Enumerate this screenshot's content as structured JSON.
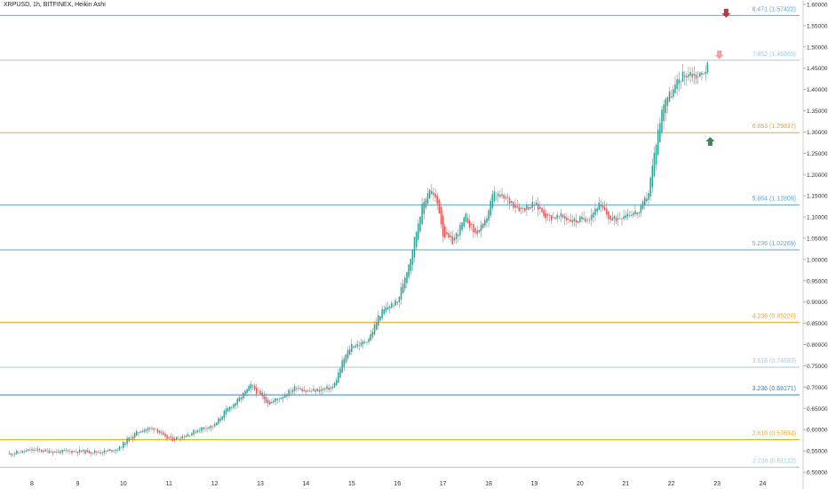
{
  "chart_data": {
    "type": "candlestick",
    "title": "XRPUSD, 1h, BITFINEX, Heikin Ashi",
    "xlabel": "",
    "ylabel": "",
    "ylim": [
      0.5,
      1.6
    ],
    "x_ticks": [
      "8",
      "9",
      "10",
      "11",
      "12",
      "13",
      "14",
      "15",
      "16",
      "17",
      "18",
      "19",
      "20",
      "21",
      "22",
      "23",
      "24"
    ],
    "y_ticks": [
      "0.50000",
      "0.55000",
      "0.60000",
      "0.65000",
      "0.70000",
      "0.75000",
      "0.80000",
      "0.85000",
      "0.90000",
      "0.95000",
      "1.00000",
      "1.05000",
      "1.10000",
      "1.15000",
      "1.20000",
      "1.25000",
      "1.30000",
      "1.35000",
      "1.40000",
      "1.45000",
      "1.50000",
      "1.55000",
      "1.60000"
    ],
    "fib_levels": [
      {
        "label": "8.471 (1.57422)",
        "value": 1.57422,
        "color": "#5aa9dd"
      },
      {
        "label": "7.852 (1.46869)",
        "value": 1.46869,
        "color": "#9fcbe8"
      },
      {
        "label": "6.853 (1.29837)",
        "value": 1.29837,
        "color": "#f5a623"
      },
      {
        "label": "5.854 (1.12805)",
        "value": 1.12805,
        "color": "#5aa9dd"
      },
      {
        "label": "5.236 (1.02269)",
        "value": 1.02269,
        "color": "#5aa9dd"
      },
      {
        "label": "4.236 (0.85220)",
        "value": 0.8522,
        "color": "#f5a623"
      },
      {
        "label": "3.618 (0.74683)",
        "value": 0.74683,
        "color": "#9fcbe8"
      },
      {
        "label": "3.236 (0.68171)",
        "value": 0.68171,
        "color": "#3f7fd1"
      },
      {
        "label": "2.618 (0.57634)",
        "value": 0.57634,
        "color": "#f5a623"
      },
      {
        "label": "2.236 (0.51122)",
        "value": 0.51122,
        "color": "#9fcbe8"
      }
    ],
    "price_path": [
      [
        7.5,
        0.543
      ],
      [
        8.0,
        0.552
      ],
      [
        8.5,
        0.548
      ],
      [
        9.0,
        0.549
      ],
      [
        9.5,
        0.547
      ],
      [
        9.9,
        0.555
      ],
      [
        10.1,
        0.578
      ],
      [
        10.4,
        0.6
      ],
      [
        10.7,
        0.604
      ],
      [
        10.9,
        0.58
      ],
      [
        11.1,
        0.578
      ],
      [
        11.4,
        0.588
      ],
      [
        11.7,
        0.603
      ],
      [
        12.0,
        0.61
      ],
      [
        12.2,
        0.64
      ],
      [
        12.5,
        0.668
      ],
      [
        12.8,
        0.704
      ],
      [
        13.0,
        0.68
      ],
      [
        13.2,
        0.662
      ],
      [
        13.5,
        0.68
      ],
      [
        13.8,
        0.702
      ],
      [
        14.0,
        0.69
      ],
      [
        14.3,
        0.693
      ],
      [
        14.6,
        0.7
      ],
      [
        14.8,
        0.76
      ],
      [
        15.0,
        0.8
      ],
      [
        15.2,
        0.8
      ],
      [
        15.4,
        0.818
      ],
      [
        15.6,
        0.87
      ],
      [
        15.8,
        0.89
      ],
      [
        16.0,
        0.9
      ],
      [
        16.3,
        1.01
      ],
      [
        16.5,
        1.11
      ],
      [
        16.7,
        1.17
      ],
      [
        16.9,
        1.125
      ],
      [
        17.0,
        1.06
      ],
      [
        17.2,
        1.04
      ],
      [
        17.5,
        1.1
      ],
      [
        17.7,
        1.06
      ],
      [
        17.9,
        1.08
      ],
      [
        18.1,
        1.155
      ],
      [
        18.4,
        1.14
      ],
      [
        18.7,
        1.12
      ],
      [
        19.0,
        1.13
      ],
      [
        19.3,
        1.1
      ],
      [
        19.6,
        1.1
      ],
      [
        19.9,
        1.09
      ],
      [
        20.2,
        1.1
      ],
      [
        20.4,
        1.13
      ],
      [
        20.7,
        1.09
      ],
      [
        21.0,
        1.11
      ],
      [
        21.3,
        1.11
      ],
      [
        21.5,
        1.16
      ],
      [
        21.7,
        1.3
      ],
      [
        21.85,
        1.38
      ],
      [
        22.0,
        1.39
      ],
      [
        22.2,
        1.43
      ],
      [
        22.4,
        1.44
      ],
      [
        22.6,
        1.43
      ],
      [
        22.8,
        1.455
      ]
    ],
    "markers": [
      {
        "type": "arrow-down",
        "x": 23.2,
        "value": 1.573,
        "color": "#b83a3a"
      },
      {
        "type": "arrow-down",
        "x": 23.05,
        "value": 1.475,
        "color": "#f2a0a0"
      },
      {
        "type": "arrow-up",
        "x": 22.85,
        "value": 1.278,
        "color": "#3a8a55"
      }
    ],
    "colors": {
      "up": "#26a69a",
      "down": "#ef5350"
    },
    "grid": false
  }
}
